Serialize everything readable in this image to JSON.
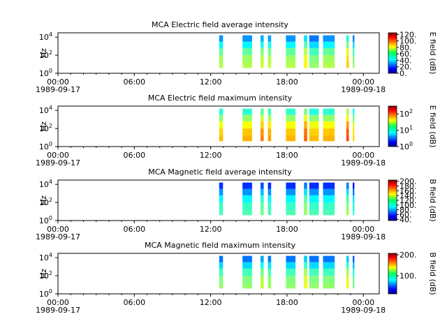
{
  "chart_data": [
    {
      "type": "heatmap",
      "title": "MCA  Electric field average intensity",
      "ylabel": "Hz",
      "ylim": [
        1,
        30000
      ],
      "yscale": "log",
      "yticks": [
        {
          "base": "10",
          "exp": "0"
        },
        {
          "base": "10",
          "exp": "2"
        },
        {
          "base": "10",
          "exp": "4"
        }
      ],
      "xticks": [
        "00:00",
        "06:00",
        "12:00",
        "18:00",
        "00:00"
      ],
      "xdates": [
        "1989-09-17",
        "1989-09-18"
      ],
      "xlim": [
        "1989-09-17 00:00",
        "1989-09-18 01:15"
      ],
      "colorbar": {
        "label": "E field (dB)",
        "scale": "linear",
        "ticks": [
          "0.",
          "20.",
          "40.",
          "60.",
          "80.",
          "100.",
          "120."
        ],
        "range": [
          0,
          125
        ],
        "colormap": "jet"
      },
      "data_blocks": [
        {
          "start": "12:40",
          "end": "12:58",
          "level": 0.48
        },
        {
          "start": "14:30",
          "end": "15:15",
          "level": 0.45
        },
        {
          "start": "15:55",
          "end": "16:10",
          "level": 0.45
        },
        {
          "start": "16:30",
          "end": "16:45",
          "level": 0.5
        },
        {
          "start": "17:55",
          "end": "18:40",
          "level": 0.45
        },
        {
          "start": "19:20",
          "end": "19:35",
          "level": 0.5
        },
        {
          "start": "19:45",
          "end": "20:30",
          "level": 0.45
        },
        {
          "start": "20:50",
          "end": "21:45",
          "level": 0.45
        },
        {
          "start": "22:40",
          "end": "22:52",
          "level": 0.55
        },
        {
          "start": "23:10",
          "end": "23:18",
          "level": 0.45
        }
      ]
    },
    {
      "type": "heatmap",
      "title": "MCA  Electric field maximum intensity",
      "ylabel": "Hz",
      "ylim": [
        1,
        30000
      ],
      "yscale": "log",
      "yticks": [
        {
          "base": "10",
          "exp": "0"
        },
        {
          "base": "10",
          "exp": "2"
        },
        {
          "base": "10",
          "exp": "4"
        }
      ],
      "xticks": [
        "00:00",
        "06:00",
        "12:00",
        "18:00",
        "00:00"
      ],
      "xdates": [
        "1989-09-17",
        "1989-09-18"
      ],
      "xlim": [
        "1989-09-17 00:00",
        "1989-09-18 01:15"
      ],
      "colorbar": {
        "label": "E field (dB)",
        "scale": "log",
        "ticks": [
          {
            "base": "10",
            "exp": "0"
          },
          {
            "base": "10",
            "exp": "1"
          },
          {
            "base": "10",
            "exp": "2"
          }
        ],
        "range": [
          1,
          300
        ],
        "colormap": "jet"
      },
      "data_blocks": [
        {
          "start": "12:40",
          "end": "12:58",
          "level": 0.62
        },
        {
          "start": "14:30",
          "end": "15:15",
          "level": 0.6
        },
        {
          "start": "15:55",
          "end": "16:10",
          "level": 0.62
        },
        {
          "start": "16:30",
          "end": "16:45",
          "level": 0.65
        },
        {
          "start": "17:55",
          "end": "18:40",
          "level": 0.6
        },
        {
          "start": "19:20",
          "end": "19:35",
          "level": 0.65
        },
        {
          "start": "19:45",
          "end": "20:30",
          "level": 0.62
        },
        {
          "start": "20:50",
          "end": "21:45",
          "level": 0.6
        },
        {
          "start": "22:40",
          "end": "22:52",
          "level": 0.68
        },
        {
          "start": "23:10",
          "end": "23:18",
          "level": 0.6
        }
      ]
    },
    {
      "type": "heatmap",
      "title": "MCA  Magnetic field average intensity",
      "ylabel": "Hz",
      "ylim": [
        1,
        30000
      ],
      "yscale": "log",
      "yticks": [
        {
          "base": "10",
          "exp": "0"
        },
        {
          "base": "10",
          "exp": "2"
        },
        {
          "base": "10",
          "exp": "4"
        }
      ],
      "xticks": [
        "00:00",
        "06:00",
        "12:00",
        "18:00",
        "00:00"
      ],
      "xdates": [
        "1989-09-17",
        "1989-09-18"
      ],
      "xlim": [
        "1989-09-17 00:00",
        "1989-09-18 01:15"
      ],
      "colorbar": {
        "label": "B field (dB)",
        "scale": "linear",
        "ticks": [
          "40.",
          "60.",
          "80.",
          "100.",
          "120.",
          "140.",
          "160.",
          "180.",
          "200."
        ],
        "range": [
          35,
          205
        ],
        "colormap": "jet"
      },
      "data_blocks": [
        {
          "start": "12:40",
          "end": "12:58",
          "level": 0.38
        },
        {
          "start": "14:30",
          "end": "15:15",
          "level": 0.35
        },
        {
          "start": "15:55",
          "end": "16:10",
          "level": 0.36
        },
        {
          "start": "16:30",
          "end": "16:45",
          "level": 0.38
        },
        {
          "start": "17:55",
          "end": "18:40",
          "level": 0.35
        },
        {
          "start": "19:20",
          "end": "19:35",
          "level": 0.4
        },
        {
          "start": "19:45",
          "end": "20:30",
          "level": 0.38
        },
        {
          "start": "20:50",
          "end": "21:45",
          "level": 0.35
        },
        {
          "start": "22:40",
          "end": "22:52",
          "level": 0.4
        },
        {
          "start": "23:10",
          "end": "23:18",
          "level": 0.35
        }
      ]
    },
    {
      "type": "heatmap",
      "title": "MCA  Magnetic field maximum intensity",
      "ylabel": "Hz",
      "ylim": [
        1,
        30000
      ],
      "yscale": "log",
      "yticks": [
        {
          "base": "10",
          "exp": "0"
        },
        {
          "base": "10",
          "exp": "2"
        },
        {
          "base": "10",
          "exp": "4"
        }
      ],
      "xticks": [
        "00:00",
        "06:00",
        "12:00",
        "18:00",
        "00:00"
      ],
      "xdates": [
        "1989-09-17",
        "1989-09-18"
      ],
      "xlim": [
        "1989-09-17 00:00",
        "1989-09-18 01:15"
      ],
      "colorbar": {
        "label": "B field (dB)",
        "scale": "log",
        "ticks": [
          "100.",
          "200."
        ],
        "range": [
          55,
          210
        ],
        "colormap": "jet"
      },
      "data_blocks": [
        {
          "start": "12:40",
          "end": "12:58",
          "level": 0.45
        },
        {
          "start": "14:30",
          "end": "15:15",
          "level": 0.42
        },
        {
          "start": "15:55",
          "end": "16:10",
          "level": 0.44
        },
        {
          "start": "16:30",
          "end": "16:45",
          "level": 0.46
        },
        {
          "start": "17:55",
          "end": "18:40",
          "level": 0.42
        },
        {
          "start": "19:20",
          "end": "19:35",
          "level": 0.48
        },
        {
          "start": "19:45",
          "end": "20:30",
          "level": 0.45
        },
        {
          "start": "20:50",
          "end": "21:45",
          "level": 0.42
        },
        {
          "start": "22:40",
          "end": "22:52",
          "level": 0.48
        },
        {
          "start": "23:10",
          "end": "23:18",
          "level": 0.42
        }
      ]
    }
  ]
}
